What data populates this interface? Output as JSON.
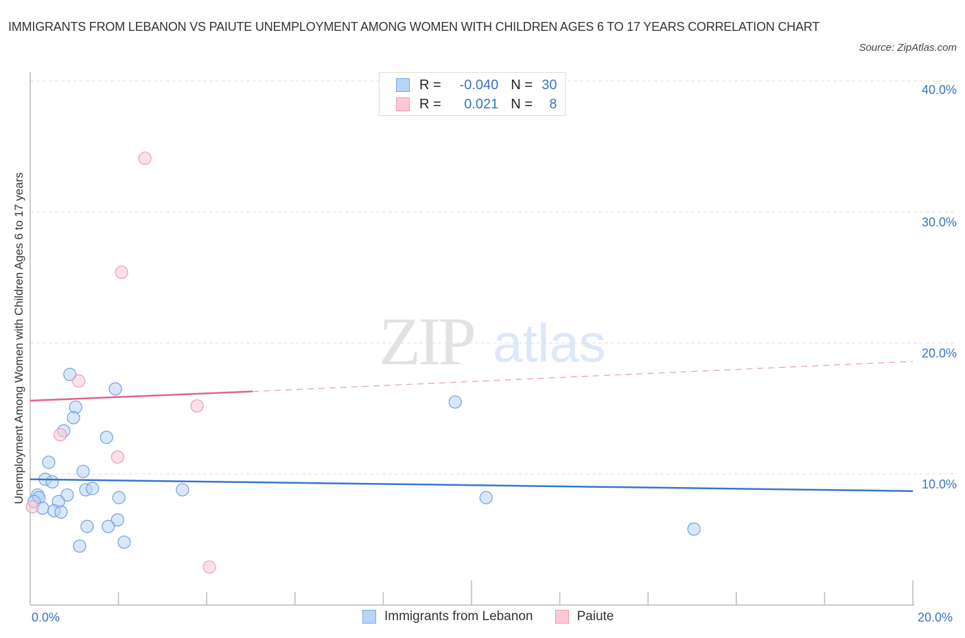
{
  "title": "IMMIGRANTS FROM LEBANON VS PAIUTE UNEMPLOYMENT AMONG WOMEN WITH CHILDREN AGES 6 TO 17 YEARS CORRELATION CHART",
  "source": "Source: ZipAtlas.com",
  "watermark": {
    "zip": "ZIP",
    "atlas": "atlas"
  },
  "legend_stats": [
    {
      "r_label": "R =",
      "r_value": "-0.040",
      "n_label": "N =",
      "n_value": "30",
      "color": "#b8d4f5",
      "border": "#7aa8e6"
    },
    {
      "r_label": "R =",
      "r_value": "0.021",
      "n_label": "N =",
      "n_value": "8",
      "color": "#fcc8d6",
      "border": "#ee9ab2"
    }
  ],
  "bottom_legend": [
    {
      "label": "Immigrants from Lebanon",
      "color": "#b8d4f5",
      "border": "#7aa8e6"
    },
    {
      "label": "Paiute",
      "color": "#fcc8d6",
      "border": "#ee9ab2"
    }
  ],
  "y_ticks": [
    "40.0%",
    "30.0%",
    "20.0%",
    "10.0%"
  ],
  "x_ticks": [
    "0.0%",
    "20.0%"
  ],
  "ylabel": "Unemployment Among Women with Children Ages 6 to 17 years",
  "chart_data": {
    "type": "scatter",
    "title": "IMMIGRANTS FROM LEBANON VS PAIUTE UNEMPLOYMENT AMONG WOMEN WITH CHILDREN AGES 6 TO 17 YEARS CORRELATION CHART",
    "xlabel": "",
    "ylabel": "Unemployment Among Women with Children Ages 6 to 17 years",
    "xlim": [
      0,
      20
    ],
    "ylim": [
      0,
      40
    ],
    "x_tick_labels": [
      "0.0%",
      "20.0%"
    ],
    "y_tick_labels": [
      "10.0%",
      "20.0%",
      "30.0%",
      "40.0%"
    ],
    "grid": true,
    "legend_position": "bottom",
    "series": [
      {
        "name": "Immigrants from Lebanon",
        "color": "#6fa0e0",
        "R": -0.04,
        "N": 30,
        "points": [
          [
            0.9,
            17.6
          ],
          [
            1.93,
            16.5
          ],
          [
            9.63,
            15.5
          ],
          [
            1.03,
            15.1
          ],
          [
            0.98,
            14.3
          ],
          [
            0.76,
            13.3
          ],
          [
            1.73,
            12.8
          ],
          [
            0.42,
            10.9
          ],
          [
            1.2,
            10.2
          ],
          [
            0.34,
            9.6
          ],
          [
            0.5,
            9.4
          ],
          [
            3.45,
            8.8
          ],
          [
            1.26,
            8.8
          ],
          [
            1.41,
            8.9
          ],
          [
            0.84,
            8.4
          ],
          [
            2.01,
            8.2
          ],
          [
            10.33,
            8.2
          ],
          [
            0.17,
            8.4
          ],
          [
            0.2,
            8.2
          ],
          [
            0.64,
            7.9
          ],
          [
            0.09,
            7.9
          ],
          [
            0.28,
            7.4
          ],
          [
            0.54,
            7.2
          ],
          [
            0.7,
            7.1
          ],
          [
            1.98,
            6.5
          ],
          [
            1.29,
            6.0
          ],
          [
            1.77,
            6.0
          ],
          [
            15.04,
            5.8
          ],
          [
            2.13,
            4.8
          ],
          [
            1.12,
            4.5
          ]
        ],
        "trend": {
          "x": [
            0,
            20
          ],
          "y": [
            9.6,
            8.7
          ],
          "style": "solid"
        }
      },
      {
        "name": "Paiute",
        "color": "#ee8fab",
        "R": 0.021,
        "N": 8,
        "points": [
          [
            2.6,
            34.1
          ],
          [
            2.07,
            25.4
          ],
          [
            1.1,
            17.1
          ],
          [
            3.78,
            15.2
          ],
          [
            0.68,
            13.0
          ],
          [
            1.98,
            11.3
          ],
          [
            4.06,
            2.9
          ],
          [
            0.05,
            7.5
          ]
        ],
        "trend": {
          "x": [
            0,
            5.04,
            20
          ],
          "y": [
            15.6,
            16.3,
            18.6
          ],
          "style": "solid then dashed"
        }
      }
    ]
  }
}
